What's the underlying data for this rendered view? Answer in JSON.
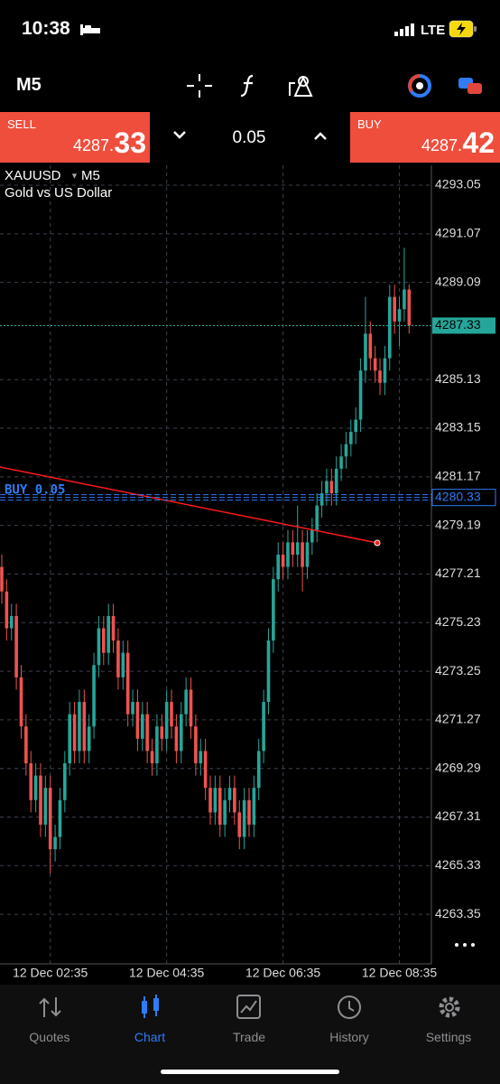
{
  "status_bar": {
    "time": "10:38",
    "network": "LTE"
  },
  "toolbar": {
    "timeframe": "M5"
  },
  "trade_panel": {
    "sell_label": "SELL",
    "sell_price_main": "4287.",
    "sell_price_pips": "33",
    "volume": "0.05",
    "buy_label": "BUY",
    "buy_price_main": "4287.",
    "buy_price_pips": "42"
  },
  "chart_data": {
    "type": "candlestick",
    "symbol": "XAUUSD",
    "timeframe": "M5",
    "subtitle": "Gold vs US Dollar",
    "up_color": "#26a69a",
    "down_color": "#ef5350",
    "open": [
      4277.5,
      4276.5,
      4275.0,
      4275.5,
      4273.0,
      4271.0,
      4269.5,
      4268.0,
      4269.0,
      4267.0,
      4268.5,
      4266.0,
      4266.5,
      4268.0,
      4269.5,
      4271.5,
      4270.0,
      4272.0,
      4270.0,
      4271.0,
      4273.5,
      4275.0,
      4274.0,
      4275.5,
      4274.5,
      4273.0,
      4274.0,
      4271.5,
      4272.0,
      4270.5,
      4271.5,
      4270.0,
      4269.5,
      4271.0,
      4270.5,
      4272.0,
      4271.0,
      4270.0,
      4271.5,
      4272.5,
      4271.0,
      4269.5,
      4270.0,
      4268.5,
      4267.5,
      4268.5,
      4267.0,
      4268.0,
      4268.5,
      4267.5,
      4266.5,
      4268.0,
      4267.0,
      4268.5,
      4270.0,
      4272.0,
      4274.5,
      4277.0,
      4278.0,
      4277.5,
      4278.5,
      4278.0,
      4278.5,
      4277.5,
      4278.5,
      4279.0,
      4280.0,
      4280.5,
      4281.0,
      4280.5,
      4281.5,
      4282.0,
      4282.5,
      4283.0,
      4283.5,
      4285.5,
      4287.0,
      4286.0,
      4285.5,
      4285.0,
      4286.0,
      4288.5,
      4287.5,
      4288.0,
      4288.8
    ],
    "high": [
      4278.0,
      4277.0,
      4276.0,
      4276.0,
      4273.5,
      4271.5,
      4270.0,
      4269.5,
      4269.5,
      4269.0,
      4269.0,
      4267.0,
      4268.5,
      4270.0,
      4272.0,
      4272.0,
      4272.5,
      4272.5,
      4271.5,
      4274.0,
      4275.5,
      4275.5,
      4276.0,
      4276.0,
      4275.0,
      4274.5,
      4274.5,
      4272.5,
      4272.5,
      4272.0,
      4272.0,
      4270.5,
      4271.5,
      4271.5,
      4272.5,
      4272.5,
      4271.5,
      4272.0,
      4273.0,
      4273.0,
      4271.5,
      4270.5,
      4270.5,
      4269.0,
      4269.0,
      4269.0,
      4268.5,
      4269.0,
      4269.0,
      4268.0,
      4268.5,
      4268.5,
      4269.0,
      4270.5,
      4272.5,
      4275.0,
      4277.5,
      4278.5,
      4278.5,
      4279.0,
      4279.0,
      4280.0,
      4279.0,
      4279.0,
      4279.5,
      4280.5,
      4281.0,
      4281.5,
      4281.5,
      4282.0,
      4282.5,
      4283.0,
      4283.5,
      4284.0,
      4286.0,
      4288.5,
      4287.5,
      4286.5,
      4286.0,
      4286.5,
      4289.0,
      4289.0,
      4288.5,
      4290.5,
      4289.0
    ],
    "low": [
      4276.0,
      4274.5,
      4274.5,
      4272.5,
      4270.5,
      4269.0,
      4267.5,
      4267.5,
      4266.5,
      4266.5,
      4265.0,
      4265.5,
      4266.0,
      4267.5,
      4269.0,
      4269.5,
      4269.5,
      4269.5,
      4269.5,
      4270.5,
      4273.0,
      4273.5,
      4273.5,
      4274.0,
      4272.5,
      4272.5,
      4271.0,
      4271.0,
      4270.0,
      4270.0,
      4269.5,
      4269.0,
      4269.0,
      4270.0,
      4270.0,
      4270.5,
      4269.5,
      4269.5,
      4271.0,
      4270.5,
      4269.0,
      4269.0,
      4268.0,
      4267.0,
      4267.0,
      4266.5,
      4266.5,
      4267.5,
      4267.0,
      4266.0,
      4266.0,
      4266.5,
      4266.5,
      4268.0,
      4269.5,
      4271.5,
      4274.0,
      4276.5,
      4277.0,
      4277.0,
      4277.5,
      4277.5,
      4276.5,
      4277.0,
      4278.0,
      4278.5,
      4279.5,
      4280.0,
      4280.0,
      4280.0,
      4281.0,
      4281.5,
      4282.0,
      4282.5,
      4283.0,
      4285.0,
      4285.5,
      4285.0,
      4284.5,
      4284.5,
      4285.5,
      4287.0,
      4286.5,
      4287.5,
      4287.0
    ],
    "close": [
      4276.5,
      4275.0,
      4275.5,
      4273.0,
      4271.0,
      4269.5,
      4268.0,
      4269.0,
      4267.0,
      4268.5,
      4266.0,
      4266.5,
      4268.0,
      4269.5,
      4271.5,
      4270.0,
      4272.0,
      4270.0,
      4271.0,
      4273.5,
      4275.0,
      4274.0,
      4275.5,
      4274.5,
      4273.0,
      4274.0,
      4271.5,
      4272.0,
      4270.5,
      4271.5,
      4270.0,
      4269.5,
      4271.0,
      4270.5,
      4272.0,
      4271.0,
      4270.0,
      4271.5,
      4272.5,
      4271.0,
      4269.5,
      4270.0,
      4268.5,
      4267.5,
      4268.5,
      4267.0,
      4268.0,
      4268.5,
      4267.5,
      4266.5,
      4268.0,
      4267.0,
      4268.5,
      4270.0,
      4272.0,
      4274.5,
      4277.0,
      4278.0,
      4277.5,
      4278.5,
      4278.0,
      4278.5,
      4277.5,
      4278.5,
      4279.0,
      4280.0,
      4280.5,
      4281.0,
      4280.5,
      4281.5,
      4282.0,
      4282.5,
      4283.0,
      4283.5,
      4285.5,
      4287.0,
      4286.0,
      4285.5,
      4285.0,
      4286.0,
      4288.5,
      4287.5,
      4288.0,
      4288.8,
      4287.33
    ],
    "xlim": [
      -0.37,
      88.6
    ],
    "xticks": [
      {
        "value": 10,
        "label": "12 Dec 02:35"
      },
      {
        "value": 34,
        "label": "12 Dec 04:35"
      },
      {
        "value": 58,
        "label": "12 Dec 06:35"
      },
      {
        "value": 82,
        "label": "12 Dec 08:35"
      }
    ],
    "ylim": [
      4261.33,
      4293.86
    ],
    "yticks": [
      4293.05,
      4291.07,
      4289.09,
      4285.13,
      4283.15,
      4281.17,
      4279.19,
      4277.21,
      4275.23,
      4273.25,
      4271.27,
      4269.29,
      4267.31,
      4265.33,
      4263.35
    ],
    "grid": true,
    "bid_line": 4287.33,
    "order_line": {
      "label": "BUY 0.05",
      "price": 4280.33
    }
  },
  "tab_bar": {
    "tabs": [
      "Quotes",
      "Chart",
      "Trade",
      "History",
      "Settings"
    ]
  }
}
